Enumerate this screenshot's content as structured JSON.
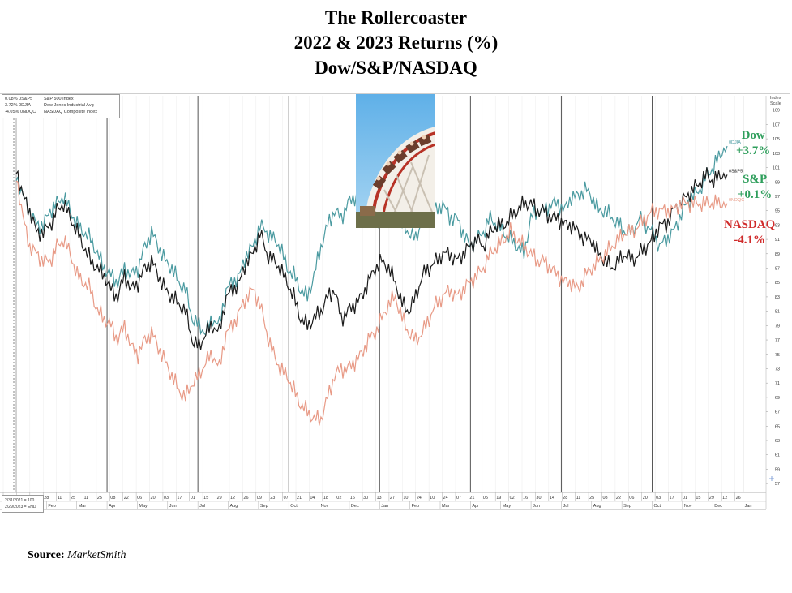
{
  "title": {
    "line1": "The Rollercoaster",
    "line2": "2022 & 2023 Returns (%)",
    "line3": "Dow/S&P/NASDAQ"
  },
  "source": {
    "label": "Source:",
    "name": "MarketSmith"
  },
  "legend": [
    {
      "value": "0.08% 0S&P5",
      "name": "S&P 500 Index"
    },
    {
      "value": "3.72% 0DJIA",
      "name": "Dow Jones Industrial Avg"
    },
    {
      "value": "-4.05% 0NDQC",
      "name": "NASDAQ Composite Index"
    }
  ],
  "chart_note": {
    "line1": "2/31/2021 = 100",
    "line2": "2/29/2023 = END"
  },
  "index_scale_label": {
    "line1": "Index",
    "line2": "Scale"
  },
  "annotations": {
    "dow": {
      "name": "Dow",
      "value": "+3.7%",
      "color": "#2e9e5b"
    },
    "sp": {
      "name": "S&P",
      "value": "+0.1%",
      "color": "#2e9e5b"
    },
    "nasdaq": {
      "name": "NASDAQ",
      "value": "-4.1%",
      "color": "#d02b2b"
    }
  },
  "photo": {
    "icon": "rollercoaster-photo"
  },
  "chart_data": {
    "type": "line",
    "title": "The Rollercoaster 2022 & 2023 Returns (%) Dow/S&P/NASDAQ",
    "ylim": [
      56,
      111
    ],
    "y_ticks": [
      57,
      59,
      61,
      63,
      65,
      67,
      69,
      71,
      73,
      75,
      77,
      79,
      81,
      83,
      85,
      87,
      89,
      91,
      93,
      95,
      97,
      99,
      101,
      103,
      105,
      107,
      109
    ],
    "grid": "vertical month lines",
    "x_week_labels": [
      "17",
      "31",
      "14",
      "28",
      "11",
      "25",
      "11",
      "25",
      "08",
      "22",
      "06",
      "20",
      "03",
      "17",
      "01",
      "15",
      "29",
      "12",
      "26",
      "09",
      "23",
      "07",
      "21",
      "04",
      "18",
      "02",
      "16",
      "30",
      "13",
      "27",
      "10",
      "24",
      "10",
      "24",
      "07",
      "21",
      "05",
      "19",
      "02",
      "16",
      "30",
      "14",
      "28",
      "11",
      "25",
      "08",
      "22",
      "06",
      "20",
      "03",
      "17",
      "01",
      "15",
      "29",
      "12",
      "26"
    ],
    "x_month_labels": [
      "Jan",
      "Feb",
      "Mar",
      "Apr",
      "May",
      "Jun",
      "Jul",
      "Aug",
      "Sep",
      "Oct",
      "Nov",
      "Dec",
      "Jan",
      "Feb",
      "Mar",
      "Apr",
      "May",
      "Jun",
      "Jul",
      "Aug",
      "Sep",
      "Oct",
      "Nov",
      "Dec",
      "Jan"
    ],
    "series": [
      {
        "name": "0DJIA",
        "color": "#4a9aa0",
        "values": [
          100,
          97,
          95,
          93,
          93,
          95,
          96,
          97,
          95,
          93,
          92,
          91,
          89,
          87,
          86,
          85,
          87,
          86,
          87,
          90,
          92,
          90,
          88,
          87,
          85,
          84,
          80,
          79,
          78,
          80,
          79,
          84,
          85,
          86,
          89,
          90,
          93,
          92,
          91,
          90,
          87,
          86,
          84,
          83,
          86,
          90,
          93,
          95,
          94,
          96,
          97,
          96,
          95,
          94,
          93,
          94,
          95,
          93,
          92,
          91,
          94,
          95,
          95,
          96,
          94,
          94,
          92,
          90,
          91,
          92,
          94,
          93,
          92,
          91,
          90,
          89,
          94,
          95,
          95,
          96,
          96,
          95,
          97,
          97,
          98,
          97,
          95,
          95,
          94,
          93,
          92,
          92,
          94,
          93,
          92,
          90,
          91,
          92,
          94,
          96,
          97,
          98,
          100,
          101,
          103,
          104
        ]
      },
      {
        "name": "0S&P5",
        "color": "#1a1a1a",
        "values": [
          101,
          97,
          95,
          92,
          92,
          93,
          95,
          96,
          94,
          92,
          90,
          88,
          87,
          86,
          84,
          83,
          86,
          84,
          85,
          87,
          88,
          86,
          84,
          83,
          82,
          81,
          77,
          76,
          78,
          79,
          78,
          83,
          84,
          85,
          88,
          89,
          92,
          89,
          88,
          87,
          85,
          83,
          80,
          79,
          80,
          81,
          83,
          84,
          80,
          81,
          82,
          83,
          85,
          87,
          88,
          87,
          85,
          82,
          81,
          83,
          86,
          87,
          88,
          89,
          89,
          88,
          89,
          90,
          91,
          90,
          92,
          93,
          93,
          94,
          95,
          96,
          96,
          95,
          95,
          94,
          94,
          93,
          93,
          92,
          91,
          91,
          89,
          88,
          87,
          88,
          89,
          88,
          89,
          90,
          91,
          93,
          93,
          95,
          96,
          97,
          98,
          99,
          100,
          99,
          100,
          100
        ]
      },
      {
        "name": "0NDQC",
        "color": "#e89a86",
        "values": [
          100,
          94,
          90,
          89,
          88,
          88,
          90,
          91,
          89,
          86,
          85,
          84,
          81,
          80,
          79,
          77,
          79,
          76,
          75,
          77,
          78,
          76,
          74,
          72,
          70,
          69,
          71,
          72,
          74,
          75,
          73,
          78,
          79,
          81,
          83,
          84,
          82,
          78,
          75,
          73,
          72,
          70,
          68,
          67,
          66,
          66,
          69,
          72,
          73,
          73,
          74,
          75,
          77,
          78,
          80,
          82,
          83,
          80,
          78,
          77,
          78,
          80,
          82,
          83,
          84,
          83,
          84,
          85,
          86,
          87,
          89,
          90,
          91,
          92,
          91,
          90,
          89,
          88,
          88,
          87,
          86,
          85,
          85,
          84,
          86,
          87,
          88,
          89,
          90,
          91,
          92,
          92,
          93,
          94,
          95,
          95,
          95,
          95,
          96,
          96,
          96,
          96,
          96,
          96,
          96,
          96
        ]
      }
    ]
  }
}
